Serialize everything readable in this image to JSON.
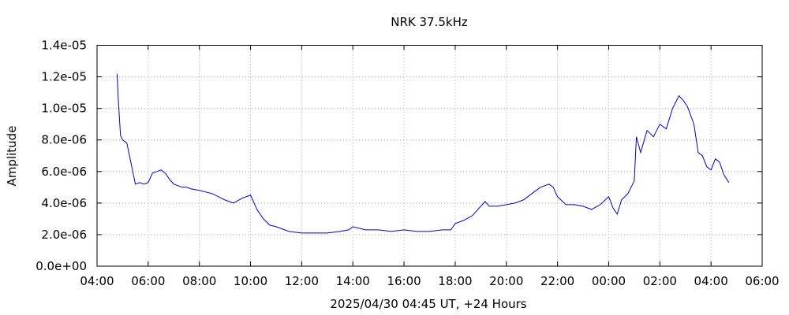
{
  "chart_data": {
    "type": "line",
    "title": "NRK 37.5kHz",
    "xlabel": "2025/04/30 04:45 UT, +24 Hours",
    "ylabel": "Amplitude",
    "x_unit": "UT clock time",
    "xlim": [
      "04:00",
      "06:00 (+1 day)"
    ],
    "ylim": [
      0,
      1.4e-05
    ],
    "x_ticks": [
      "04:00",
      "06:00",
      "08:00",
      "10:00",
      "12:00",
      "14:00",
      "16:00",
      "18:00",
      "20:00",
      "22:00",
      "00:00",
      "02:00",
      "04:00",
      "06:00"
    ],
    "y_ticks": [
      "0.0e+00",
      "2.0e-06",
      "4.0e-06",
      "6.0e-06",
      "8.0e-06",
      "1.0e-05",
      "1.2e-05",
      "1.4e-05"
    ],
    "y_tick_values": [
      0,
      2e-06,
      4e-06,
      6e-06,
      8e-06,
      1e-05,
      1.2e-05,
      1.4e-05
    ],
    "grid": true,
    "legend": "none",
    "series_color": "#0000cc",
    "series": [
      {
        "name": "",
        "x": [
          "04:47",
          "04:50",
          "04:55",
          "05:00",
          "05:10",
          "05:20",
          "05:30",
          "05:40",
          "05:50",
          "06:00",
          "06:10",
          "06:20",
          "06:30",
          "06:40",
          "06:50",
          "07:00",
          "07:10",
          "07:20",
          "07:30",
          "07:40",
          "08:00",
          "08:30",
          "09:00",
          "09:20",
          "09:40",
          "10:00",
          "10:15",
          "10:30",
          "10:45",
          "11:00",
          "11:30",
          "12:00",
          "12:30",
          "13:00",
          "13:30",
          "13:50",
          "14:00",
          "14:30",
          "15:00",
          "15:30",
          "16:00",
          "16:30",
          "17:00",
          "17:30",
          "17:50",
          "18:00",
          "18:20",
          "18:40",
          "19:00",
          "19:10",
          "19:20",
          "19:40",
          "20:00",
          "20:20",
          "20:40",
          "21:00",
          "21:20",
          "21:40",
          "21:50",
          "22:00",
          "22:20",
          "22:40",
          "23:00",
          "23:20",
          "23:40",
          "00:00",
          "00:10",
          "00:20",
          "00:30",
          "00:45",
          "01:00",
          "01:05",
          "01:15",
          "01:30",
          "01:45",
          "02:00",
          "02:15",
          "02:30",
          "02:45",
          "02:55",
          "03:05",
          "03:20",
          "03:30",
          "03:40",
          "03:50",
          "04:00",
          "04:10",
          "04:20",
          "04:30",
          "04:42"
        ],
        "values": [
          1.22e-05,
          1.05e-05,
          8.3e-06,
          8e-06,
          7.8e-06,
          6.5e-06,
          5.2e-06,
          5.3e-06,
          5.2e-06,
          5.3e-06,
          5.9e-06,
          6e-06,
          6.1e-06,
          5.9e-06,
          5.5e-06,
          5.2e-06,
          5.1e-06,
          5e-06,
          5e-06,
          4.9e-06,
          4.8e-06,
          4.6e-06,
          4.2e-06,
          4e-06,
          4.3e-06,
          4.5e-06,
          3.6e-06,
          3e-06,
          2.6e-06,
          2.5e-06,
          2.2e-06,
          2.1e-06,
          2.1e-06,
          2.1e-06,
          2.2e-06,
          2.3e-06,
          2.5e-06,
          2.3e-06,
          2.3e-06,
          2.2e-06,
          2.3e-06,
          2.2e-06,
          2.2e-06,
          2.3e-06,
          2.3e-06,
          2.7e-06,
          2.9e-06,
          3.2e-06,
          3.8e-06,
          4.1e-06,
          3.8e-06,
          3.8e-06,
          3.9e-06,
          4e-06,
          4.2e-06,
          4.6e-06,
          5e-06,
          5.2e-06,
          5e-06,
          4.4e-06,
          3.9e-06,
          3.9e-06,
          3.8e-06,
          3.6e-06,
          3.9e-06,
          4.4e-06,
          3.7e-06,
          3.3e-06,
          4.2e-06,
          4.6e-06,
          5.4e-06,
          8.2e-06,
          7.2e-06,
          8.6e-06,
          8.2e-06,
          9e-06,
          8.7e-06,
          1e-05,
          1.08e-05,
          1.05e-05,
          1.01e-05,
          9e-06,
          7.2e-06,
          7e-06,
          6.3e-06,
          6.1e-06,
          6.8e-06,
          6.6e-06,
          5.8e-06,
          5.3e-06
        ]
      }
    ]
  }
}
